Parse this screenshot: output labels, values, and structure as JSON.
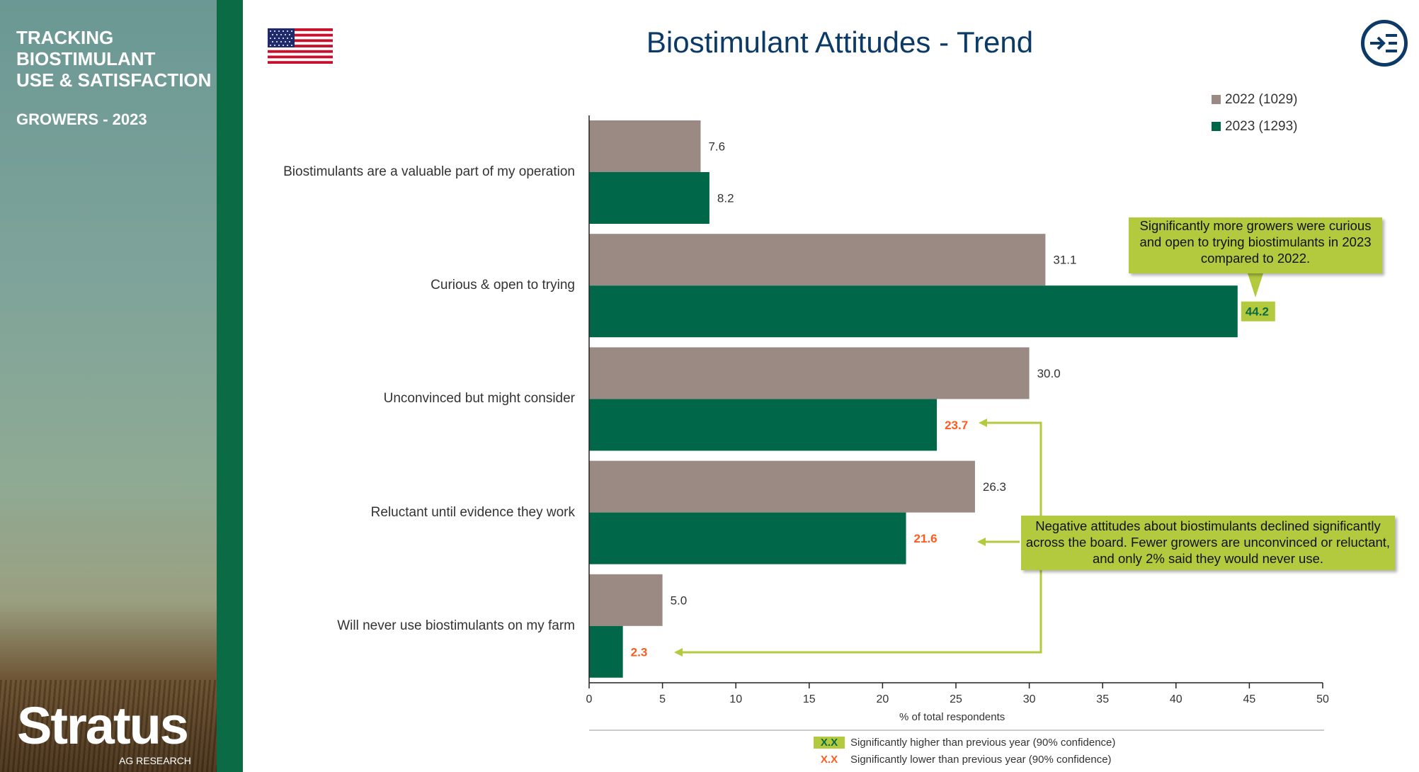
{
  "sidebar": {
    "title_lines": [
      "TRACKING",
      "BIOSTIMULANT",
      "USE & SATISFACTION"
    ],
    "subtitle": "GROWERS - 2023",
    "logo_text": "Stratus",
    "logo_sub": "AG RESEARCH"
  },
  "header": {
    "title": "Biostimulant Attitudes - Trend",
    "flag_icon": "us-flag-icon",
    "nav_icon": "collapse-menu-icon"
  },
  "colors": {
    "series_2022": "#9b8a84",
    "series_2023": "#006848",
    "highlight": "#b4ca3e",
    "lower": "#ff5b1f",
    "title": "#0b3a66"
  },
  "chart_data": {
    "type": "bar",
    "orientation": "horizontal",
    "categories": [
      "Biostimulants are a valuable part of my operation",
      "Curious & open to trying",
      "Unconvinced but might consider",
      "Reluctant until evidence they work",
      "Will never use biostimulants on my farm"
    ],
    "series": [
      {
        "name": "2022 (1029)",
        "values": [
          7.6,
          31.1,
          30.0,
          26.3,
          5.0
        ],
        "labels": [
          "7.6",
          "31.1",
          "30.0",
          "26.3",
          "5.0"
        ],
        "sig": [
          "none",
          "none",
          "none",
          "none",
          "none"
        ]
      },
      {
        "name": "2023 (1293)",
        "values": [
          8.2,
          44.2,
          23.7,
          21.6,
          2.3
        ],
        "labels": [
          "8.2",
          "44.2",
          "23.7",
          "21.6",
          "2.3"
        ],
        "sig": [
          "none",
          "higher",
          "lower",
          "lower",
          "lower"
        ]
      }
    ],
    "xlabel": "% of total respondents",
    "xlim": [
      0,
      50
    ],
    "xticks": [
      "0",
      "5",
      "10",
      "15",
      "20",
      "25",
      "30",
      "35",
      "40",
      "45",
      "50"
    ],
    "legend_position": "top-right",
    "grid": false
  },
  "callouts": {
    "positive": "Significantly more growers were curious and open to trying biostimulants in 2023 compared to 2022.",
    "negative": "Negative attitudes about biostimulants declined significantly across the board. Fewer growers are unconvinced or reluctant, and only 2% said they would never use."
  },
  "footnote": {
    "key_text": "X.X",
    "higher": "Significantly higher than previous year (90% confidence)",
    "lower": "Significantly lower than previous year (90% confidence)"
  }
}
